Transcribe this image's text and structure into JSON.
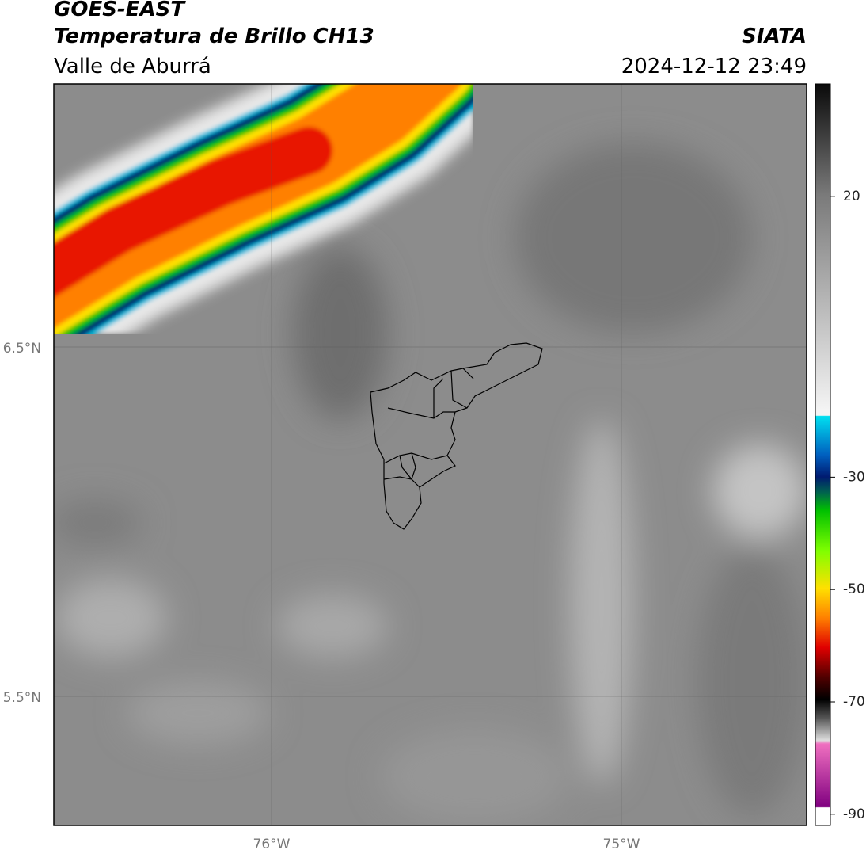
{
  "header": {
    "title": "GOES-EAST",
    "subtitle": "Temperatura de Brillo CH13",
    "region": "Valle de Aburrá",
    "source": "SIATA",
    "timestamp": "2024-12-12 23:49"
  },
  "map": {
    "lat_labels": [
      "6.5°N",
      "5.5°N"
    ],
    "lon_labels": [
      "76°W",
      "75°W"
    ]
  },
  "colorbar": {
    "lim": [
      -92,
      40
    ],
    "ticks": [
      20,
      -30,
      -50,
      -70,
      -90
    ]
  }
}
